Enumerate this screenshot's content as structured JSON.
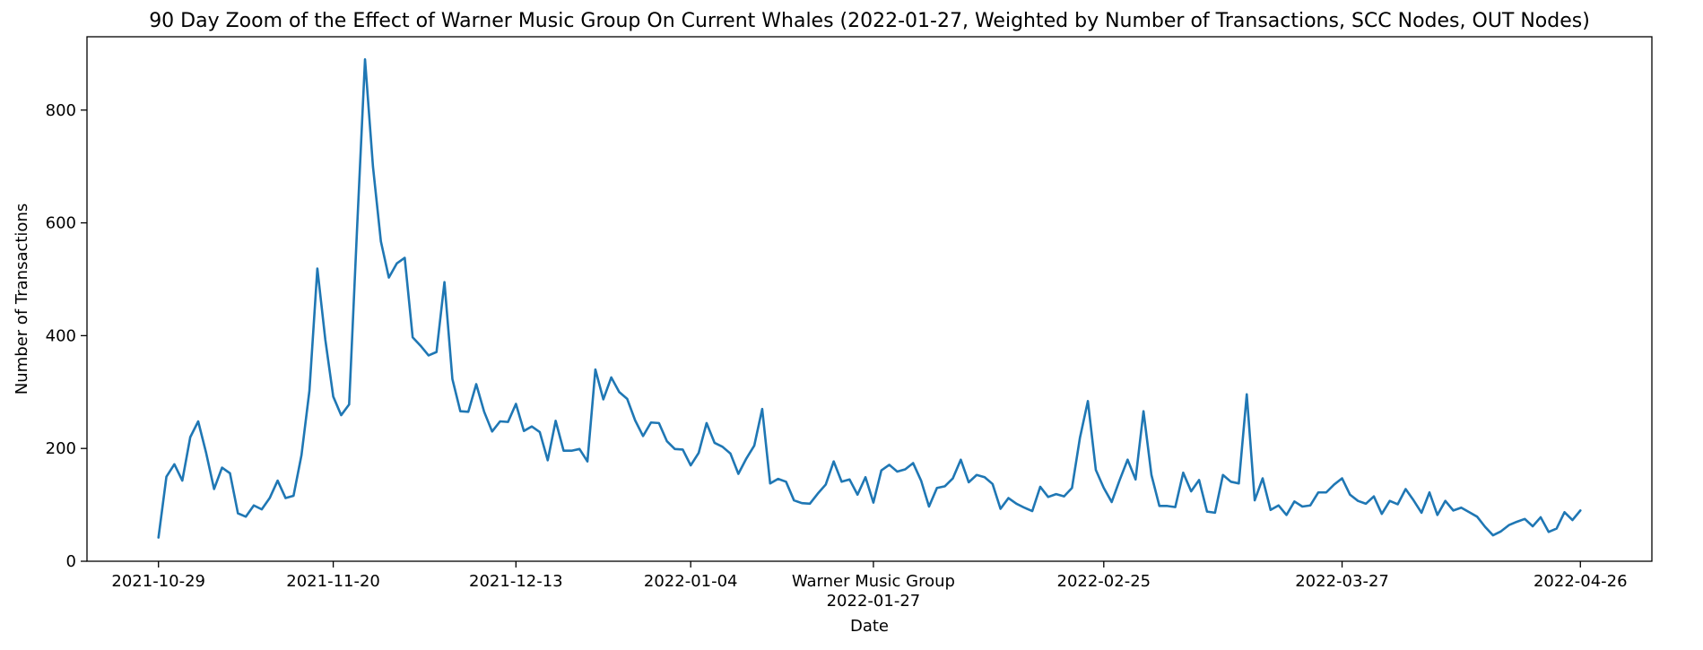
{
  "chart_data": {
    "type": "line",
    "title": "90 Day Zoom of the Effect of Warner Music Group On Current Whales (2022-01-27, Weighted by Number of Transactions, SCC Nodes, OUT Nodes)",
    "xlabel": "Date",
    "ylabel": "Number of Transactions",
    "start_date": "2021-10-29",
    "xlim": [
      "2021-10-20",
      "2022-05-05"
    ],
    "ylim": [
      0,
      930
    ],
    "grid": false,
    "x_ticks": [
      {
        "date": "2021-10-29",
        "label": "2021-10-29"
      },
      {
        "date": "2021-11-20",
        "label": "2021-11-20"
      },
      {
        "date": "2021-12-13",
        "label": "2021-12-13"
      },
      {
        "date": "2022-01-04",
        "label": "2022-01-04"
      },
      {
        "date": "2022-01-27",
        "label": "Warner Music Group\n2022-01-27"
      },
      {
        "date": "2022-02-25",
        "label": "2022-02-25"
      },
      {
        "date": "2022-03-27",
        "label": "2022-03-27"
      },
      {
        "date": "2022-04-26",
        "label": "2022-04-26"
      }
    ],
    "y_ticks": [
      0,
      200,
      400,
      600,
      800
    ],
    "series": [
      {
        "color": "#1f77b4",
        "values": [
          42,
          150,
          172,
          143,
          220,
          248,
          192,
          128,
          166,
          156,
          85,
          79,
          99,
          92,
          112,
          143,
          112,
          116,
          188,
          302,
          519,
          393,
          292,
          259,
          278,
          590,
          890,
          700,
          567,
          503,
          528,
          538,
          397,
          382,
          365,
          371,
          495,
          323,
          266,
          265,
          314,
          265,
          230,
          248,
          247,
          279,
          231,
          239,
          229,
          179,
          249,
          196,
          196,
          199,
          177,
          340,
          287,
          326,
          300,
          288,
          250,
          222,
          246,
          245,
          213,
          199,
          198,
          170,
          192,
          245,
          210,
          203,
          191,
          155,
          182,
          205,
          270,
          138,
          146,
          141,
          108,
          103,
          102,
          120,
          136,
          177,
          141,
          145,
          118,
          149,
          104,
          161,
          171,
          159,
          163,
          174,
          143,
          97,
          130,
          133,
          147,
          180,
          140,
          153,
          149,
          137,
          93,
          112,
          102,
          95,
          89,
          132,
          114,
          119,
          115,
          130,
          219,
          284,
          162,
          130,
          105,
          144,
          180,
          145,
          266,
          153,
          98,
          98,
          96,
          157,
          124,
          144,
          88,
          86,
          153,
          141,
          138,
          296,
          108,
          147,
          91,
          99,
          82,
          106,
          97,
          99,
          122,
          122,
          136,
          147,
          118,
          107,
          102,
          115,
          84,
          107,
          101,
          128,
          108,
          86,
          122,
          82,
          107,
          90,
          95,
          87,
          79,
          61,
          46,
          53,
          64,
          70,
          75,
          62,
          78,
          52,
          58,
          87,
          73,
          90
        ]
      }
    ]
  }
}
